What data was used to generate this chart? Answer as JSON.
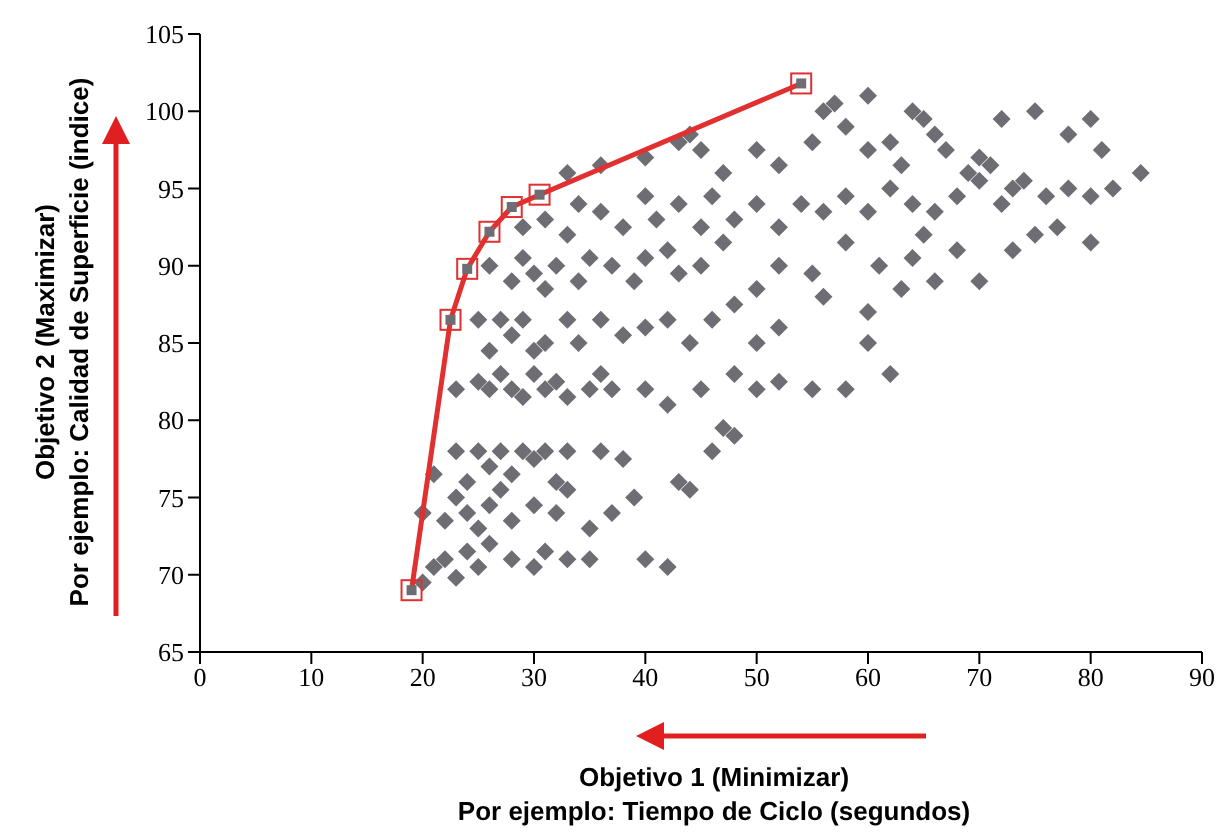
{
  "chart_data": {
    "type": "scatter",
    "xlabel": "Objetivo 1 (Minimizar)\nPor ejemplo: Tiempo de Ciclo (segundos)",
    "ylabel": "Objetivo 2 (Maximizar)\nPor ejemplo: Calidad de Superficie (indice)",
    "xlim": [
      0,
      90
    ],
    "xticks": [
      0,
      10,
      20,
      30,
      40,
      50,
      60,
      70,
      80,
      90
    ],
    "ylim": [
      65,
      105
    ],
    "yticks": [
      65,
      70,
      75,
      80,
      85,
      90,
      95,
      100,
      105
    ],
    "grid": false,
    "series": [
      {
        "color": "#6d6d73",
        "marker": "diamond",
        "x": [
          20,
          21,
          22,
          23,
          24,
          25,
          26,
          28,
          30,
          31,
          33,
          35,
          20,
          22,
          23,
          24,
          25,
          26,
          27,
          28,
          30,
          32,
          33,
          35,
          37,
          40,
          42,
          21,
          23,
          24,
          25,
          26,
          27,
          28,
          29,
          30,
          31,
          32,
          33,
          36,
          38,
          43,
          44,
          46,
          48,
          47,
          39,
          23,
          25,
          26,
          27,
          28,
          29,
          30,
          31,
          32,
          33,
          35,
          36,
          37,
          40,
          42,
          45,
          48,
          50,
          52,
          55,
          60,
          62,
          58,
          25,
          26,
          27,
          28,
          29,
          30,
          31,
          33,
          34,
          36,
          38,
          40,
          42,
          44,
          46,
          48,
          50,
          52,
          56,
          60,
          26,
          28,
          29,
          30,
          31,
          32,
          34,
          35,
          37,
          39,
          40,
          42,
          43,
          45,
          47,
          50,
          52,
          55,
          58,
          61,
          63,
          64,
          66,
          68,
          70,
          73,
          75,
          80,
          77,
          65,
          29,
          31,
          33,
          34,
          36,
          38,
          40,
          41,
          43,
          45,
          46,
          48,
          50,
          52,
          54,
          56,
          58,
          60,
          62,
          64,
          66,
          68,
          70,
          72,
          74,
          76,
          78,
          80,
          82,
          84.5,
          69,
          71,
          73,
          63,
          33,
          36,
          40,
          43,
          45,
          47,
          50,
          52,
          55,
          57,
          58,
          60,
          62,
          64,
          65,
          66,
          67,
          70,
          72,
          75,
          78,
          80,
          81,
          60,
          56,
          44
        ],
        "values": [
          69.5,
          70.5,
          71,
          69.8,
          71.5,
          70.5,
          72,
          71,
          70.5,
          71.5,
          71,
          71,
          74,
          73.5,
          75,
          74,
          73,
          74.5,
          75.5,
          73.5,
          74.5,
          74,
          75.5,
          73,
          74,
          71,
          70.5,
          76.5,
          78,
          76,
          78,
          77,
          78,
          76.5,
          78,
          77.5,
          78,
          76,
          78,
          78,
          77.5,
          76,
          75.5,
          78,
          79,
          79.5,
          75,
          82,
          82.5,
          82,
          83,
          82,
          81.5,
          83,
          82,
          82.5,
          81.5,
          82,
          83,
          82,
          82,
          81,
          82,
          83,
          82,
          82.5,
          82,
          85,
          83,
          82,
          86.5,
          84.5,
          86.5,
          85.5,
          86.5,
          84.5,
          85,
          86.5,
          85,
          86.5,
          85.5,
          86,
          86.5,
          85,
          86.5,
          87.5,
          85,
          86,
          88,
          87,
          90,
          89,
          90.5,
          89.5,
          88.5,
          90,
          89,
          90.5,
          90,
          89,
          90.5,
          91,
          89.5,
          90,
          91.5,
          88.5,
          90,
          89.5,
          91.5,
          90,
          88.5,
          90.5,
          89,
          91,
          89,
          91,
          92,
          91.5,
          92.5,
          92,
          92.5,
          93,
          92,
          94,
          93.5,
          92.5,
          94.5,
          93,
          94,
          92.5,
          94.5,
          93,
          94,
          92.5,
          94,
          93.5,
          94.5,
          93.5,
          95,
          94,
          93.5,
          94.5,
          95.5,
          94,
          95.5,
          94.5,
          95,
          94.5,
          95,
          96,
          96,
          96.5,
          95,
          96.5,
          96,
          96.5,
          97,
          98,
          97.5,
          96,
          97.5,
          96.5,
          98,
          100.5,
          99,
          97.5,
          98,
          100,
          99.5,
          98.5,
          97.5,
          97,
          99.5,
          100,
          98.5,
          99.5,
          97.5,
          101,
          100,
          98.5
        ]
      },
      {
        "type": "line",
        "color": "#e03030",
        "marker": "square",
        "line_style": "solid",
        "x": [
          19,
          22.5,
          24,
          26,
          28,
          30.5,
          54
        ],
        "values": [
          69,
          86.5,
          89.8,
          92.2,
          93.8,
          94.6,
          101.8
        ]
      }
    ]
  }
}
